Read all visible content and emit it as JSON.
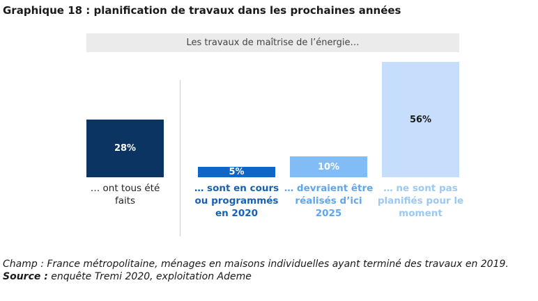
{
  "chart_data": {
    "type": "bar",
    "title": "Graphique 18  : planification de travaux dans les prochaines années",
    "subtitle": "Les travaux de maîtrise de l’énergie…",
    "categories": [
      "… ont tous été faits",
      "… sont en cours ou programmés en 2020",
      "… devraient être réalisés d’ici 2025",
      "… ne sont pas planifiés pour le moment"
    ],
    "values": [
      28,
      5,
      10,
      56
    ],
    "value_labels": [
      "28%",
      "5%",
      "10%",
      "56%"
    ],
    "colors": [
      "#0c3463",
      "#0f66c9",
      "#82bcf6",
      "#c6defb"
    ],
    "value_label_colors": [
      "#ffffff",
      "#ffffff",
      "#ffffff",
      "#1a1a1a"
    ],
    "label_colors": [
      "#222222",
      "#1760b8",
      "#5fa6ef",
      "#9cc8f4"
    ],
    "notes": {
      "champ": "Champ : France métropolitaine, ménages en maisons individuelles ayant terminé des travaux en 2019.",
      "source_label": "Source :",
      "source": " enquête Tremi 2020, exploitation Ademe"
    }
  }
}
